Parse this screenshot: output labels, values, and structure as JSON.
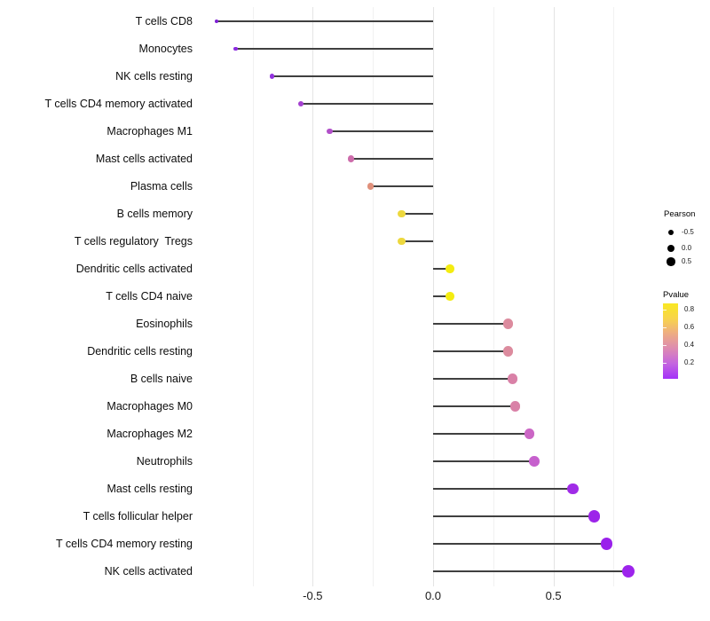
{
  "background_color": "#ffffff",
  "chart_data": {
    "type": "scatter",
    "variant": "lollipop",
    "title": "",
    "xlabel": "",
    "ylabel": "",
    "xlim": [
      -0.96,
      0.89
    ],
    "x_tick_labels": [
      "-0.5",
      "0.0",
      "0.5"
    ],
    "x_tick_values": [
      -0.5,
      0.0,
      0.5
    ],
    "x_minor_gridlines": [
      -0.75,
      -0.25,
      0.25,
      0.75
    ],
    "grid": "major and minor vertical gridlines, light gray on white",
    "baseline_x": 0.0,
    "points": [
      {
        "label": "T cells CD8",
        "pearson": -0.9,
        "color": "#7e1fd4"
      },
      {
        "label": "Monocytes",
        "pearson": -0.82,
        "color": "#8b2ae0"
      },
      {
        "label": "NK cells resting",
        "pearson": -0.67,
        "color": "#9333de"
      },
      {
        "label": "T cells CD4 memory activated",
        "pearson": -0.55,
        "color": "#a440d0"
      },
      {
        "label": "Macrophages M1",
        "pearson": -0.43,
        "color": "#b14fc9"
      },
      {
        "label": "Mast cells activated",
        "pearson": -0.34,
        "color": "#cd6cab"
      },
      {
        "label": "Plasma cells",
        "pearson": -0.26,
        "color": "#e0907b"
      },
      {
        "label": "B cells memory",
        "pearson": -0.13,
        "color": "#edd83e"
      },
      {
        "label": "T cells regulatory  Tregs",
        "pearson": -0.13,
        "color": "#edd83e"
      },
      {
        "label": "Dendritic cells activated",
        "pearson": 0.07,
        "color": "#f4ec10"
      },
      {
        "label": "T cells CD4 naive",
        "pearson": 0.07,
        "color": "#f4ec10"
      },
      {
        "label": "Eosinophils",
        "pearson": 0.31,
        "color": "#dc8b9e"
      },
      {
        "label": "Dendritic cells resting",
        "pearson": 0.31,
        "color": "#dc8b9e"
      },
      {
        "label": "B cells naive",
        "pearson": 0.33,
        "color": "#d981a7"
      },
      {
        "label": "Macrophages M0",
        "pearson": 0.34,
        "color": "#d981a7"
      },
      {
        "label": "Macrophages M2",
        "pearson": 0.4,
        "color": "#cb66c5"
      },
      {
        "label": "Neutrophils",
        "pearson": 0.42,
        "color": "#c660cd"
      },
      {
        "label": "Mast cells resting",
        "pearson": 0.58,
        "color": "#a02be7"
      },
      {
        "label": "T cells follicular helper",
        "pearson": 0.67,
        "color": "#9c24e9"
      },
      {
        "label": "T cells CD4 memory resting",
        "pearson": 0.72,
        "color": "#9a21eb"
      },
      {
        "label": "NK cells activated",
        "pearson": 0.81,
        "color": "#9d24ec"
      }
    ],
    "legend": {
      "position": "right",
      "size": {
        "title": "Pearson",
        "entries": [
          "-0.5",
          "0.0",
          "0.5"
        ],
        "circle_color": "#000000"
      },
      "color": {
        "title": "Pvalue",
        "ticks": [
          "0.8",
          "0.6",
          "0.4",
          "0.2"
        ],
        "gradient_top_label": "high p ~0.87 (yellow)",
        "gradient_bottom_label": "low p ~0.02 (violet)",
        "gradient_stops": [
          "#f9e822",
          "#f8d44b",
          "#eeac83",
          "#dd8ab2",
          "#c464e0",
          "#a331f8"
        ]
      }
    },
    "colors": {
      "stem": "#404040",
      "grid_major": "#e4e4e4",
      "grid_minor": "#f1f1f1",
      "category_text": "#0d0d0d",
      "axis_text": "#1a1a1a"
    }
  }
}
